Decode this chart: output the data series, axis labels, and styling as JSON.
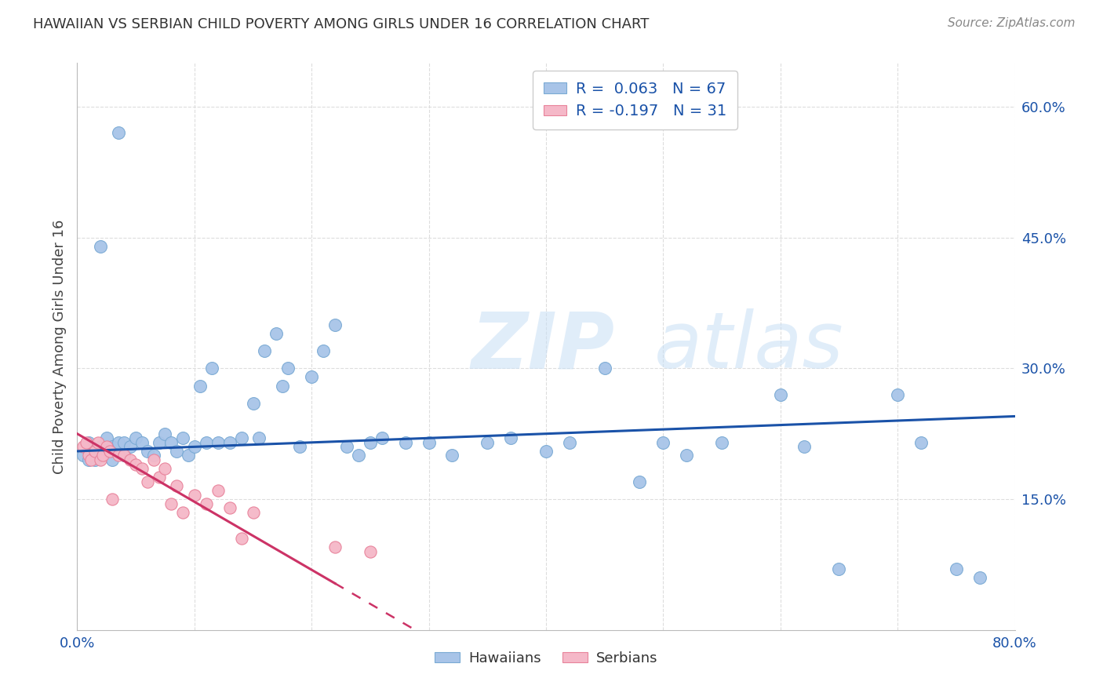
{
  "title": "HAWAIIAN VS SERBIAN CHILD POVERTY AMONG GIRLS UNDER 16 CORRELATION CHART",
  "source": "Source: ZipAtlas.com",
  "ylabel": "Child Poverty Among Girls Under 16",
  "xlim": [
    0.0,
    0.8
  ],
  "ylim": [
    0.0,
    0.65
  ],
  "xticks": [
    0.0,
    0.1,
    0.2,
    0.3,
    0.4,
    0.5,
    0.6,
    0.7,
    0.8
  ],
  "xticklabels": [
    "0.0%",
    "",
    "",
    "",
    "",
    "",
    "",
    "",
    "80.0%"
  ],
  "ytick_positions": [
    0.15,
    0.3,
    0.45,
    0.6
  ],
  "ytick_labels": [
    "15.0%",
    "30.0%",
    "45.0%",
    "60.0%"
  ],
  "hawaiian_color": "#a8c4e8",
  "hawaiian_edge": "#7aaad4",
  "serbian_color": "#f5b8c8",
  "serbian_edge": "#e8829a",
  "trendline_hawaiian_color": "#1a52a8",
  "trendline_serbian_color": "#cc3366",
  "legend_r_hawaiian": "R =  0.063",
  "legend_n_hawaiian": "N = 67",
  "legend_r_serbian": "R = -0.197",
  "legend_n_serbian": "N = 31",
  "hawaiian_x": [
    0.005,
    0.01,
    0.01,
    0.015,
    0.015,
    0.02,
    0.02,
    0.025,
    0.025,
    0.03,
    0.03,
    0.035,
    0.04,
    0.04,
    0.045,
    0.05,
    0.055,
    0.06,
    0.065,
    0.07,
    0.075,
    0.08,
    0.085,
    0.09,
    0.095,
    0.1,
    0.105,
    0.11,
    0.115,
    0.12,
    0.13,
    0.14,
    0.15,
    0.155,
    0.16,
    0.17,
    0.175,
    0.18,
    0.19,
    0.2,
    0.21,
    0.22,
    0.23,
    0.24,
    0.25,
    0.26,
    0.28,
    0.3,
    0.32,
    0.35,
    0.37,
    0.4,
    0.42,
    0.45,
    0.48,
    0.5,
    0.52,
    0.55,
    0.6,
    0.62,
    0.65,
    0.7,
    0.72,
    0.75,
    0.77,
    0.02,
    0.035
  ],
  "hawaiian_y": [
    0.2,
    0.215,
    0.195,
    0.205,
    0.195,
    0.21,
    0.2,
    0.22,
    0.205,
    0.21,
    0.195,
    0.215,
    0.2,
    0.215,
    0.21,
    0.22,
    0.215,
    0.205,
    0.2,
    0.215,
    0.225,
    0.215,
    0.205,
    0.22,
    0.2,
    0.21,
    0.28,
    0.215,
    0.3,
    0.215,
    0.215,
    0.22,
    0.26,
    0.22,
    0.32,
    0.34,
    0.28,
    0.3,
    0.21,
    0.29,
    0.32,
    0.35,
    0.21,
    0.2,
    0.215,
    0.22,
    0.215,
    0.215,
    0.2,
    0.215,
    0.22,
    0.205,
    0.215,
    0.3,
    0.17,
    0.215,
    0.2,
    0.215,
    0.27,
    0.21,
    0.07,
    0.27,
    0.215,
    0.07,
    0.06,
    0.44,
    0.57
  ],
  "serbian_x": [
    0.005,
    0.008,
    0.01,
    0.012,
    0.015,
    0.018,
    0.02,
    0.022,
    0.025,
    0.028,
    0.03,
    0.035,
    0.04,
    0.045,
    0.05,
    0.055,
    0.06,
    0.065,
    0.07,
    0.075,
    0.08,
    0.085,
    0.09,
    0.1,
    0.11,
    0.12,
    0.13,
    0.14,
    0.15,
    0.22,
    0.25
  ],
  "serbian_y": [
    0.21,
    0.215,
    0.2,
    0.195,
    0.205,
    0.215,
    0.195,
    0.2,
    0.21,
    0.205,
    0.15,
    0.2,
    0.2,
    0.195,
    0.19,
    0.185,
    0.17,
    0.195,
    0.175,
    0.185,
    0.145,
    0.165,
    0.135,
    0.155,
    0.145,
    0.16,
    0.14,
    0.105,
    0.135,
    0.095,
    0.09
  ],
  "hawaiian_R": 0.063,
  "hawaiian_N": 67,
  "serbian_R": -0.197,
  "serbian_N": 31,
  "watermark_zip": "ZIP",
  "watermark_atlas": "atlas",
  "background_color": "#ffffff",
  "grid_color": "#dddddd"
}
